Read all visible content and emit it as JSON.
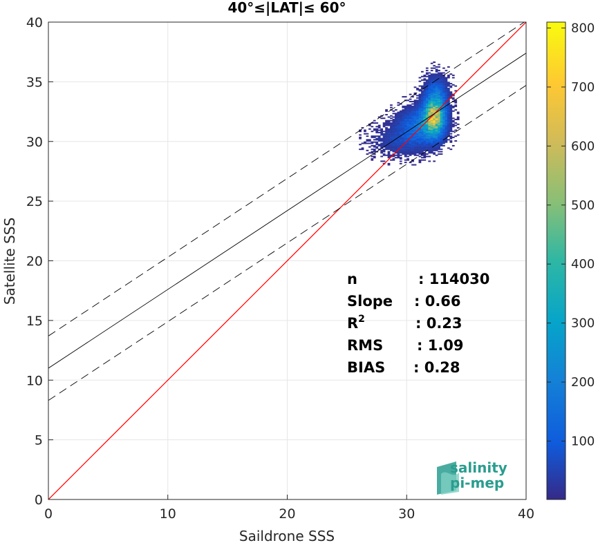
{
  "chart_data": {
    "type": "heatmap",
    "title": "40°≤|LAT|≤ 60°",
    "xlabel": "Saildrone SSS",
    "ylabel": "Satellite SSS",
    "xlim": [
      0,
      40
    ],
    "ylim": [
      0,
      40
    ],
    "xticks": [
      "0",
      "10",
      "20",
      "30",
      "40"
    ],
    "yticks": [
      "0",
      "5",
      "10",
      "15",
      "20",
      "25",
      "30",
      "35",
      "40"
    ],
    "grid": true,
    "colorbar": {
      "range": [
        1,
        810
      ],
      "ticks": [
        "100",
        "200",
        "300",
        "400",
        "500",
        "600",
        "700",
        "800"
      ],
      "colormap": "parula"
    },
    "lines": [
      {
        "kind": "one-to-one",
        "color": "#ff0000",
        "style": "solid",
        "intercept": 0,
        "slope": 1
      },
      {
        "kind": "regression",
        "color": "#000000",
        "style": "solid",
        "intercept": 11.0,
        "slope": 0.66
      },
      {
        "kind": "regression-upper",
        "color": "#000000",
        "style": "dashed",
        "intercept": 13.7,
        "slope": 0.66
      },
      {
        "kind": "regression-lower",
        "color": "#000000",
        "style": "dashed",
        "intercept": 8.3,
        "slope": 0.66
      }
    ],
    "density_clusters": [
      {
        "x": 32.2,
        "y": 32.0,
        "sx": 0.55,
        "sy": 1.0,
        "peak": 650
      },
      {
        "x": 31.0,
        "y": 31.3,
        "sx": 1.1,
        "sy": 0.9,
        "peak": 180
      },
      {
        "x": 32.4,
        "y": 33.8,
        "sx": 0.6,
        "sy": 1.0,
        "peak": 150
      },
      {
        "x": 29.5,
        "y": 30.0,
        "sx": 1.5,
        "sy": 0.8,
        "peak": 60
      }
    ],
    "stats": [
      {
        "label": "n",
        "sep": ":",
        "value": "114030"
      },
      {
        "label": "Slope",
        "sep": ":",
        "value": "0.66"
      },
      {
        "label": "R",
        "sup": "2",
        "sep": ":",
        "value": "0.23"
      },
      {
        "label": "RMS",
        "sep": ":",
        "value": "1.09"
      },
      {
        "label": "BIAS",
        "sep": ":",
        "value": "0.28"
      }
    ]
  },
  "logo": {
    "line1": "salinity",
    "line2": "pi-mep"
  }
}
